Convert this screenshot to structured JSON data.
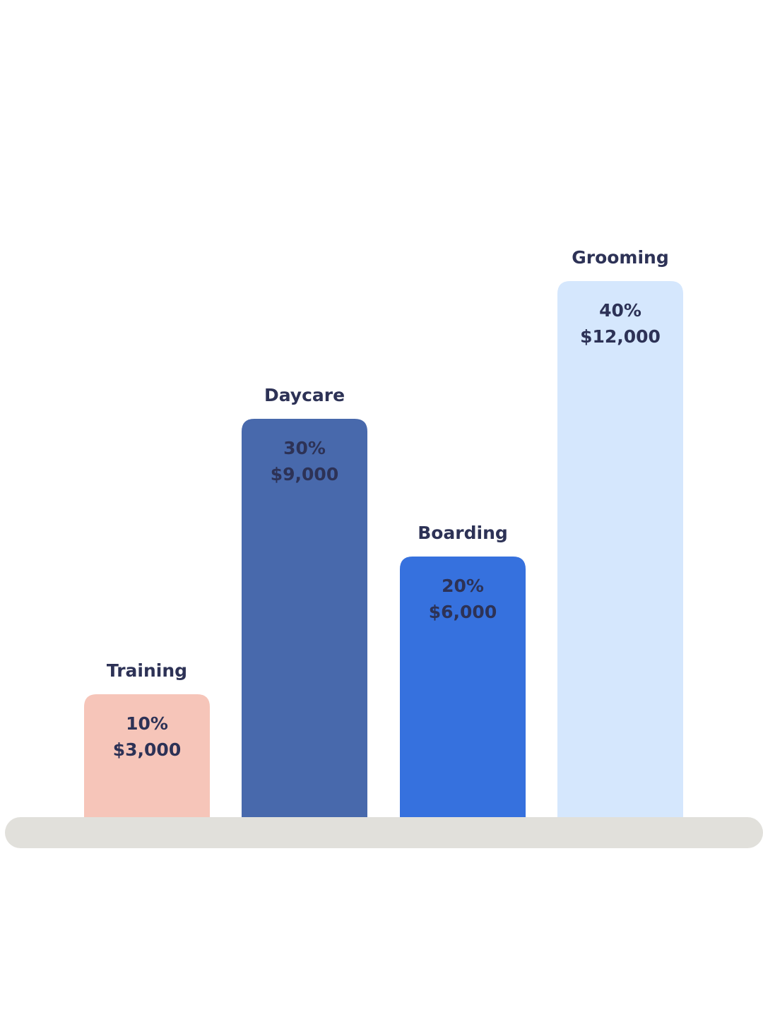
{
  "chart_data": {
    "type": "bar",
    "categories": [
      "Training",
      "Daycare",
      "Boarding",
      "Grooming"
    ],
    "values": [
      3000,
      9000,
      6000,
      12000
    ],
    "value_labels": [
      "$3,000",
      "$9,000",
      "$6,000",
      "$12,000"
    ],
    "percents": [
      10,
      30,
      20,
      40
    ],
    "percent_labels": [
      "10%",
      "30%",
      "20%",
      "40%"
    ],
    "colors": [
      "#f6c5b9",
      "#4869ac",
      "#3671de",
      "#d5e7fd"
    ]
  }
}
